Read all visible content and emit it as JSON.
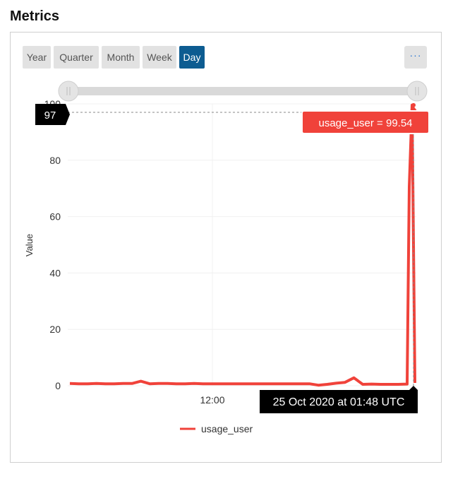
{
  "page": {
    "title": "Metrics"
  },
  "range_buttons": [
    {
      "label": "Year",
      "active": false
    },
    {
      "label": "Quarter",
      "active": false
    },
    {
      "label": "Month",
      "active": false
    },
    {
      "label": "Week",
      "active": false
    },
    {
      "label": "Day",
      "active": true
    }
  ],
  "more_button": {
    "label": "···"
  },
  "colors": {
    "series": "#f0423a",
    "accent": "#0d5c91",
    "tooltip_bg": "#000000"
  },
  "chart_data": {
    "type": "line",
    "ylabel": "Value",
    "xlabel": "",
    "ylim": [
      0,
      100
    ],
    "y_ticks": [
      0,
      20,
      40,
      60,
      80,
      100
    ],
    "x_ticks": [
      "12:00"
    ],
    "grid": true,
    "legend_position": "bottom",
    "series": [
      {
        "name": "usage_user",
        "color": "#f0423a",
        "points_approx": [
          0.8,
          0.7,
          0.7,
          0.8,
          0.7,
          0.7,
          0.8,
          0.8,
          1.6,
          0.7,
          0.8,
          0.8,
          0.7,
          0.7,
          0.8,
          0.7,
          0.7,
          0.7,
          0.7,
          0.7,
          0.7,
          0.7,
          0.7,
          0.7,
          0.7,
          0.7,
          0.7,
          0.7,
          0.2,
          0.5,
          0.9,
          1.2,
          2.8,
          0.5,
          0.6,
          0.5,
          0.5,
          0.5,
          0.6,
          0.6,
          70.6,
          99.54,
          1.0
        ]
      }
    ],
    "crosshair": {
      "y_value_label": "97",
      "tooltip": "usage_user = 99.54",
      "time_label": "25 Oct 2020 at 01:48 UTC"
    },
    "range_slider": {
      "start": 0,
      "end": 1
    }
  }
}
